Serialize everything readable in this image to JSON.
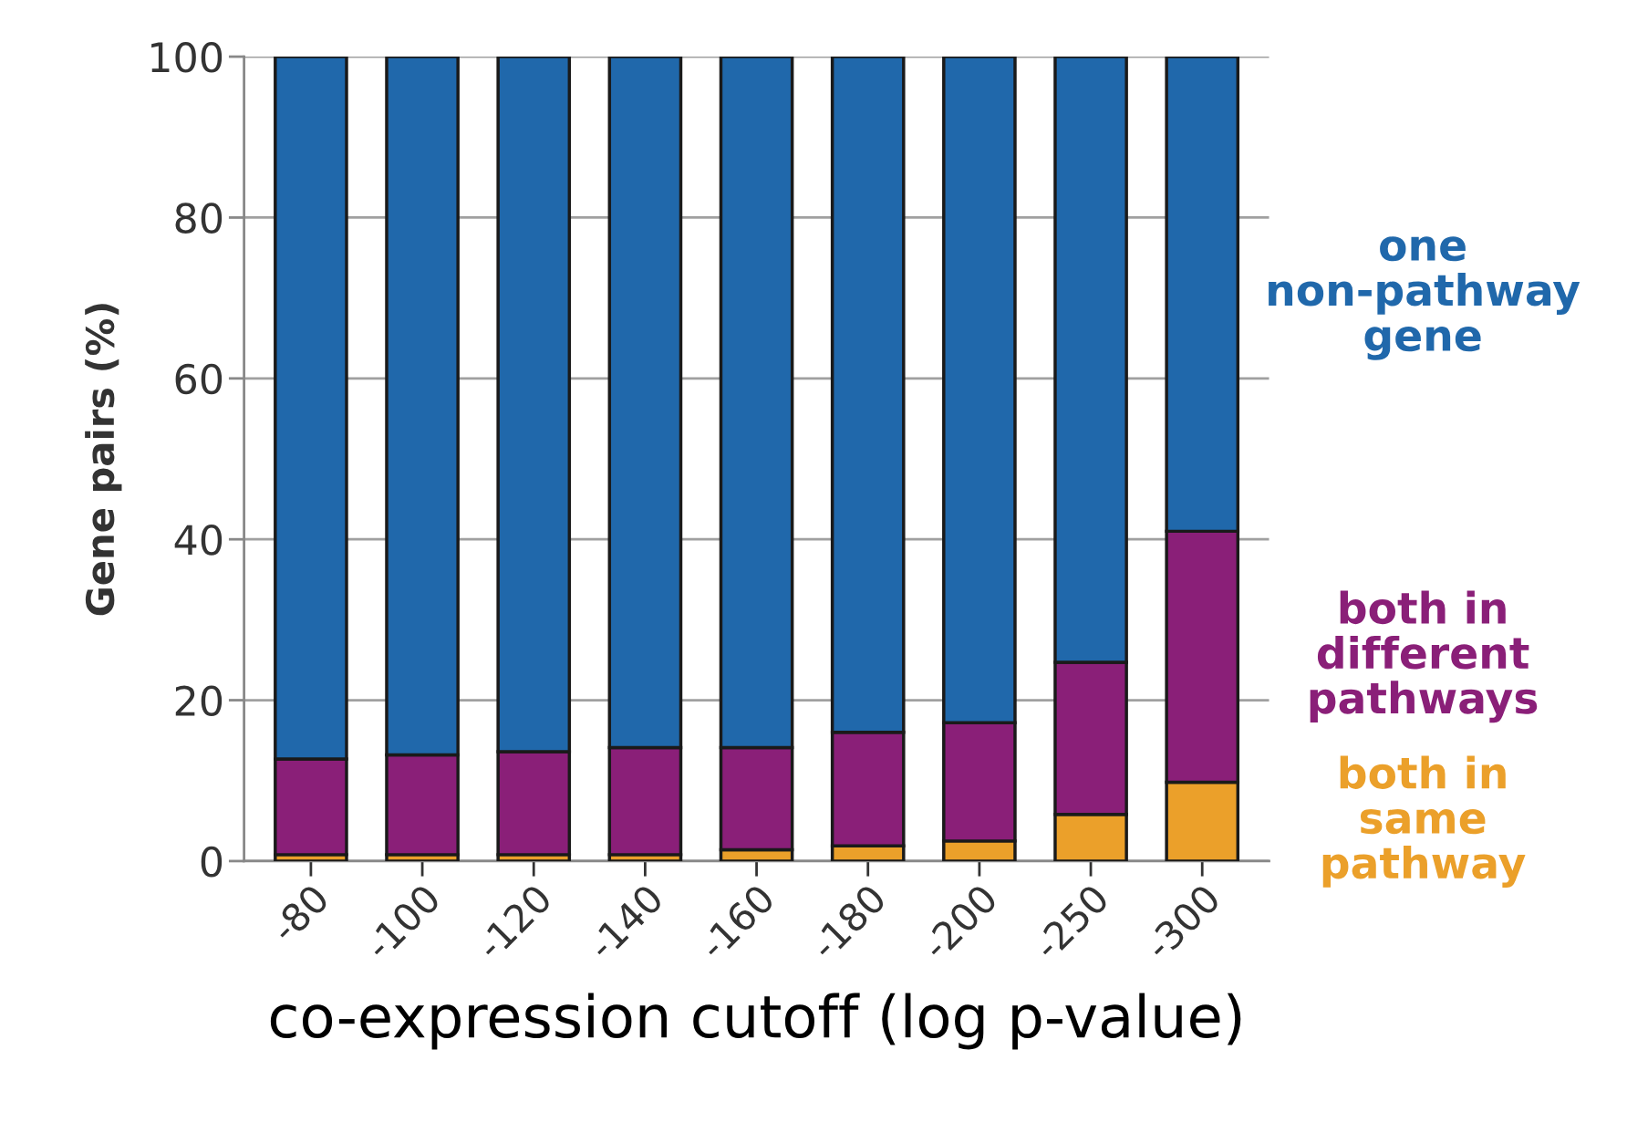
{
  "chart_data": {
    "type": "bar",
    "stacked": true,
    "xlabel": "co-expression cutoff (log p-value)",
    "ylabel": "Gene pairs (%)",
    "categories": [
      "-80",
      "-100",
      "-120",
      "-140",
      "-160",
      "-180",
      "-200",
      "-250",
      "-300"
    ],
    "series": [
      {
        "name": "both in same pathway",
        "color": "#eba02a",
        "values": [
          0.8,
          0.8,
          0.8,
          0.8,
          1.4,
          1.9,
          2.5,
          5.8,
          9.8
        ]
      },
      {
        "name": "both in different pathways",
        "color": "#8a1f78",
        "values": [
          11.9,
          12.4,
          12.8,
          13.3,
          12.7,
          14.1,
          14.7,
          18.9,
          31.2
        ]
      },
      {
        "name": "one non-pathway gene",
        "color": "#2068ab",
        "values": [
          87.3,
          86.8,
          86.4,
          85.9,
          85.9,
          84.0,
          82.8,
          75.3,
          59.0
        ]
      }
    ],
    "ylim": [
      0,
      100
    ],
    "yticks": [
      0,
      20,
      40,
      60,
      80,
      100
    ],
    "grid": "y",
    "legend": false
  }
}
